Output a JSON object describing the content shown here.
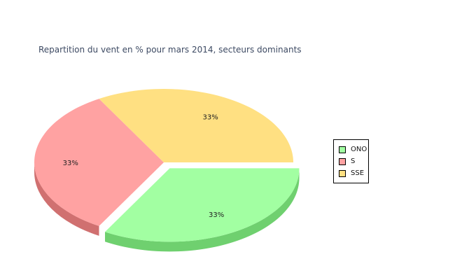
{
  "chart_data": {
    "type": "pie",
    "title": "Repartition du vent en % pour mars 2014, secteurs dominants",
    "slices": [
      {
        "name": "ONO",
        "value": 33.33,
        "label": "33%",
        "color": "#a2ffa2",
        "side_color": "#6fd06f",
        "exploded": true
      },
      {
        "name": "S",
        "value": 33.33,
        "label": "33%",
        "color": "#ffa2a2",
        "side_color": "#d07070",
        "exploded": false
      },
      {
        "name": "SSE",
        "value": 33.33,
        "label": "33%",
        "color": "#ffe082",
        "side_color": "#d4b450",
        "exploded": false
      }
    ],
    "legend_position": "right",
    "style": "3d-exploded"
  }
}
